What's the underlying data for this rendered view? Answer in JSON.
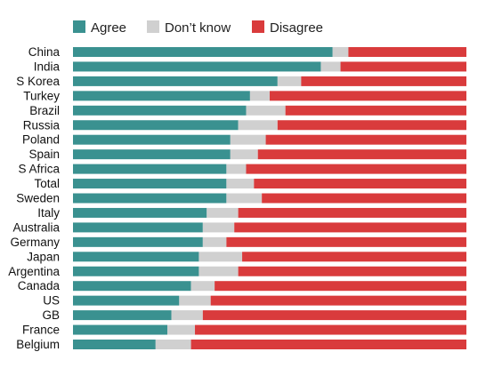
{
  "chart_data": {
    "type": "bar",
    "orientation": "horizontal",
    "stacked": true,
    "normalized_to": 100,
    "legend": {
      "placement": "top-left",
      "entries": [
        {
          "name": "Agree",
          "color": "#3a9190"
        },
        {
          "name": "Don’t know",
          "color": "#d0d0d0"
        },
        {
          "name": "Disagree",
          "color": "#d93b3c"
        }
      ]
    },
    "categories": [
      "China",
      "India",
      "S Korea",
      "Turkey",
      "Brazil",
      "Russia",
      "Poland",
      "Spain",
      "S Africa",
      "Total",
      "Sweden",
      "Italy",
      "Australia",
      "Germany",
      "Japan",
      "Argentina",
      "Canada",
      "US",
      "GB",
      "France",
      "Belgium"
    ],
    "series": [
      {
        "name": "Agree",
        "color": "#3a9190",
        "values": [
          66,
          63,
          52,
          45,
          44,
          42,
          40,
          40,
          39,
          39,
          39,
          34,
          33,
          33,
          32,
          32,
          30,
          27,
          25,
          24,
          21
        ]
      },
      {
        "name": "Don’t know",
        "color": "#d0d0d0",
        "values": [
          4,
          5,
          6,
          5,
          10,
          10,
          9,
          7,
          5,
          7,
          9,
          8,
          8,
          6,
          11,
          10,
          6,
          8,
          8,
          7,
          9
        ]
      },
      {
        "name": "Disagree",
        "color": "#d93b3c",
        "values": [
          30,
          32,
          42,
          50,
          46,
          48,
          51,
          53,
          56,
          54,
          52,
          58,
          59,
          61,
          57,
          58,
          64,
          65,
          67,
          69,
          70
        ]
      }
    ],
    "xlim": [
      0,
      100
    ],
    "grid": false,
    "title": "",
    "xlabel": "",
    "ylabel": ""
  }
}
